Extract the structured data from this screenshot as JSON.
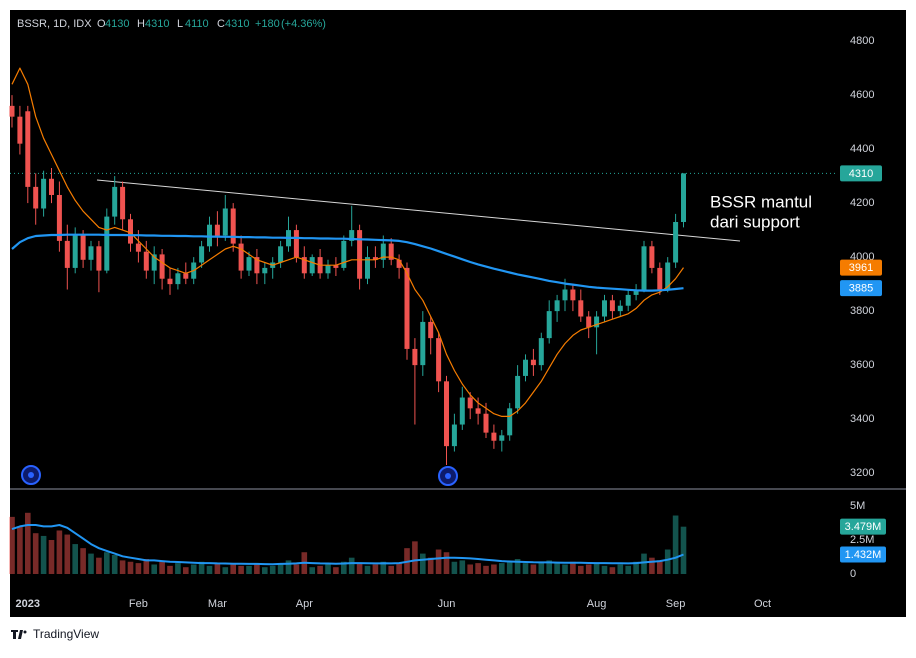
{
  "chart_data": {
    "type": "candlestick",
    "title": "BSSR, 1D, IDX",
    "ohlc_header": [
      {
        "label": "O",
        "value": 4130
      },
      {
        "label": "H",
        "value": 4310
      },
      {
        "label": "L",
        "value": 4110
      },
      {
        "label": "C",
        "value": 4310
      }
    ],
    "change": {
      "value": 180,
      "label": "+180"
    },
    "change_pct": {
      "value": 4.36,
      "label": "(+4.36%)"
    },
    "categories": [
      null,
      null,
      "2023",
      null,
      null,
      null,
      null,
      null,
      null,
      null,
      null,
      null,
      null,
      null,
      null,
      null,
      "Feb",
      null,
      null,
      null,
      null,
      null,
      null,
      null,
      null,
      null,
      "Mar",
      null,
      null,
      null,
      null,
      null,
      null,
      null,
      null,
      null,
      null,
      "Apr",
      null,
      null,
      null,
      null,
      null,
      null,
      null,
      null,
      null,
      null,
      null,
      null,
      null,
      null,
      null,
      null,
      null,
      "Jun",
      null,
      null,
      null,
      null,
      null,
      null,
      null,
      null,
      null,
      null,
      null,
      null,
      null,
      null,
      null,
      null,
      null,
      null,
      "Aug",
      null,
      null,
      null,
      null,
      null,
      null,
      null,
      null,
      null,
      "Sep",
      null,
      null,
      null,
      null,
      null,
      null,
      null,
      null,
      null,
      null,
      "Oct",
      null,
      null,
      null,
      null,
      null,
      null,
      null,
      null,
      null
    ],
    "candles": [
      [
        4560,
        4600,
        4480,
        4520
      ],
      [
        4520,
        4560,
        4380,
        4420
      ],
      [
        4540,
        4560,
        4200,
        4260
      ],
      [
        4260,
        4310,
        4120,
        4180
      ],
      [
        4180,
        4320,
        4150,
        4290
      ],
      [
        4290,
        4330,
        4200,
        4230
      ],
      [
        4230,
        4280,
        4020,
        4060
      ],
      [
        4060,
        4120,
        3880,
        3960
      ],
      [
        3960,
        4110,
        3940,
        4080
      ],
      [
        4080,
        4100,
        3960,
        3990
      ],
      [
        3990,
        4060,
        3950,
        4040
      ],
      [
        4040,
        4060,
        3870,
        3950
      ],
      [
        3950,
        4180,
        3940,
        4150
      ],
      [
        4150,
        4300,
        4120,
        4260
      ],
      [
        4260,
        4280,
        4100,
        4140
      ],
      [
        4140,
        4160,
        4020,
        4050
      ],
      [
        4050,
        4100,
        3980,
        4020
      ],
      [
        4020,
        4060,
        3920,
        3950
      ],
      [
        3950,
        4040,
        3900,
        4010
      ],
      [
        4010,
        4030,
        3880,
        3920
      ],
      [
        3920,
        3960,
        3860,
        3900
      ],
      [
        3900,
        3960,
        3880,
        3940
      ],
      [
        3940,
        3980,
        3900,
        3920
      ],
      [
        3920,
        4000,
        3900,
        3980
      ],
      [
        3980,
        4060,
        3960,
        4040
      ],
      [
        4040,
        4150,
        4020,
        4120
      ],
      [
        4120,
        4170,
        4040,
        4080
      ],
      [
        4080,
        4230,
        4060,
        4180
      ],
      [
        4180,
        4200,
        4020,
        4050
      ],
      [
        4050,
        4080,
        3920,
        3950
      ],
      [
        3950,
        4020,
        3930,
        4000
      ],
      [
        4000,
        4030,
        3900,
        3940
      ],
      [
        3940,
        3980,
        3900,
        3960
      ],
      [
        3960,
        4000,
        3920,
        3980
      ],
      [
        3980,
        4060,
        3960,
        4040
      ],
      [
        4040,
        4150,
        4020,
        4100
      ],
      [
        4100,
        4120,
        3980,
        4000
      ],
      [
        4000,
        4040,
        3920,
        3940
      ],
      [
        3940,
        4010,
        3930,
        4000
      ],
      [
        4000,
        4030,
        3920,
        3940
      ],
      [
        3940,
        3990,
        3920,
        3970
      ],
      [
        3970,
        4000,
        3930,
        3960
      ],
      [
        3960,
        4080,
        3950,
        4060
      ],
      [
        4060,
        4190,
        4040,
        4100
      ],
      [
        4100,
        4120,
        3880,
        3920
      ],
      [
        3920,
        4040,
        3900,
        4000
      ],
      [
        4000,
        4040,
        3960,
        3990
      ],
      [
        3990,
        4080,
        3960,
        4050
      ],
      [
        4050,
        4070,
        3970,
        3990
      ],
      [
        3990,
        4010,
        3920,
        3960
      ],
      [
        3960,
        3980,
        3620,
        3660
      ],
      [
        3660,
        3700,
        3380,
        3600
      ],
      [
        3600,
        3800,
        3560,
        3760
      ],
      [
        3760,
        3780,
        3640,
        3700
      ],
      [
        3700,
        3720,
        3500,
        3540
      ],
      [
        3540,
        3560,
        3230,
        3300
      ],
      [
        3300,
        3420,
        3280,
        3380
      ],
      [
        3380,
        3520,
        3360,
        3480
      ],
      [
        3480,
        3500,
        3400,
        3440
      ],
      [
        3440,
        3480,
        3380,
        3420
      ],
      [
        3420,
        3460,
        3330,
        3350
      ],
      [
        3350,
        3380,
        3290,
        3320
      ],
      [
        3320,
        3360,
        3280,
        3340
      ],
      [
        3340,
        3460,
        3320,
        3440
      ],
      [
        3440,
        3600,
        3420,
        3560
      ],
      [
        3560,
        3640,
        3540,
        3620
      ],
      [
        3620,
        3660,
        3560,
        3600
      ],
      [
        3600,
        3720,
        3580,
        3700
      ],
      [
        3700,
        3840,
        3680,
        3800
      ],
      [
        3800,
        3860,
        3760,
        3840
      ],
      [
        3840,
        3920,
        3800,
        3880
      ],
      [
        3880,
        3900,
        3800,
        3840
      ],
      [
        3840,
        3880,
        3760,
        3780
      ],
      [
        3780,
        3800,
        3700,
        3740
      ],
      [
        3740,
        3800,
        3640,
        3780
      ],
      [
        3780,
        3860,
        3760,
        3840
      ],
      [
        3840,
        3860,
        3770,
        3800
      ],
      [
        3800,
        3840,
        3780,
        3820
      ],
      [
        3820,
        3880,
        3800,
        3860
      ],
      [
        3860,
        3900,
        3840,
        3880
      ],
      [
        3880,
        4060,
        3870,
        4040
      ],
      [
        4040,
        4060,
        3940,
        3960
      ],
      [
        3960,
        3980,
        3860,
        3880
      ],
      [
        3880,
        4000,
        3870,
        3980
      ],
      [
        3980,
        4160,
        3960,
        4130
      ],
      [
        4130,
        4310,
        4110,
        4310
      ],
      null,
      null,
      null,
      null,
      null,
      null,
      null,
      null,
      null,
      null,
      null,
      null,
      null,
      null,
      null,
      null,
      null,
      null,
      null
    ],
    "up_color": "#26a69a",
    "down_color": "#ef5350",
    "ylim": [
      3145,
      4915
    ],
    "yticks": [
      3200,
      3400,
      3600,
      3800,
      4000,
      4200,
      4400,
      4600,
      4800
    ],
    "grid": false,
    "moving_averages": [
      {
        "color": "#f57c00",
        "values": [
          4640,
          4700,
          4640,
          4520,
          4440,
          4380,
          4320,
          4260,
          4210,
          4170,
          4140,
          4110,
          4100,
          4110,
          4100,
          4090,
          4060,
          4030,
          4000,
          3980,
          3960,
          3950,
          3940,
          3950,
          3970,
          3990,
          4010,
          4030,
          4040,
          4030,
          4010,
          3990,
          3980,
          3970,
          3980,
          3990,
          4000,
          3990,
          3980,
          3970,
          3970,
          3970,
          3980,
          3990,
          3990,
          3990,
          3990,
          4000,
          4000,
          3990,
          3940,
          3880,
          3840,
          3780,
          3720,
          3640,
          3580,
          3530,
          3490,
          3460,
          3440,
          3420,
          3410,
          3410,
          3430,
          3460,
          3500,
          3540,
          3590,
          3640,
          3680,
          3710,
          3730,
          3740,
          3750,
          3760,
          3770,
          3780,
          3790,
          3810,
          3840,
          3860,
          3870,
          3890,
          3920,
          3961,
          null,
          null,
          null,
          null,
          null,
          null,
          null,
          null,
          null,
          null,
          null,
          null,
          null,
          null,
          null,
          null,
          null,
          null,
          null
        ]
      },
      {
        "color": "#2196f3",
        "values": [
          4030,
          4055,
          4070,
          4078,
          4080,
          4082,
          4082,
          4083,
          4083,
          4083,
          4083,
          4083,
          4082,
          4082,
          4082,
          4081,
          4081,
          4080,
          4080,
          4079,
          4079,
          4078,
          4078,
          4077,
          4077,
          4076,
          4076,
          4075,
          4075,
          4074,
          4074,
          4073,
          4073,
          4072,
          4072,
          4071,
          4071,
          4070,
          4070,
          4069,
          4069,
          4068,
          4068,
          4067,
          4066,
          4065,
          4064,
          4063,
          4062,
          4060,
          4055,
          4048,
          4040,
          4032,
          4022,
          4012,
          4002,
          3992,
          3982,
          3973,
          3965,
          3957,
          3950,
          3943,
          3936,
          3930,
          3924,
          3918,
          3912,
          3907,
          3902,
          3898,
          3894,
          3890,
          3887,
          3885,
          3883,
          3881,
          3879,
          3877,
          3876,
          3876,
          3877,
          3879,
          3882,
          3885,
          null,
          null,
          null,
          null,
          null,
          null,
          null,
          null,
          null,
          null,
          null,
          null,
          null,
          null,
          null,
          null,
          null,
          null,
          null
        ]
      }
    ],
    "volume": {
      "values": [
        4.2,
        3.5,
        4.5,
        3.0,
        2.8,
        2.5,
        3.2,
        2.9,
        2.2,
        1.9,
        1.5,
        1.2,
        1.6,
        1.4,
        1.0,
        0.9,
        0.8,
        1.1,
        0.7,
        0.9,
        0.6,
        0.8,
        0.5,
        0.7,
        0.9,
        0.6,
        0.8,
        0.5,
        0.7,
        0.6,
        0.6,
        0.7,
        0.5,
        0.6,
        0.8,
        1.0,
        0.7,
        1.6,
        0.5,
        0.6,
        0.7,
        0.5,
        0.9,
        1.2,
        0.8,
        0.6,
        0.7,
        0.9,
        0.6,
        0.8,
        1.9,
        2.4,
        1.5,
        1.2,
        1.8,
        1.6,
        0.9,
        1.0,
        0.7,
        0.8,
        0.6,
        0.7,
        0.8,
        0.9,
        1.1,
        0.8,
        0.7,
        0.9,
        1.0,
        0.8,
        0.7,
        0.9,
        0.6,
        0.7,
        0.8,
        0.6,
        0.5,
        0.7,
        0.6,
        0.9,
        1.5,
        1.2,
        1.0,
        1.8,
        4.3,
        3.479,
        null,
        null,
        null,
        null,
        null,
        null,
        null,
        null,
        null,
        null,
        null,
        null,
        null,
        null,
        null,
        null,
        null,
        null,
        null
      ],
      "ylim": [
        0,
        6.25
      ],
      "yticks": [
        0,
        {
          "value": 2.5,
          "label": "2.5M"
        },
        {
          "value": 5,
          "label": "5M"
        }
      ],
      "average": {
        "color": "#2196f3",
        "values": [
          3.3,
          3.5,
          3.6,
          3.6,
          3.5,
          3.5,
          3.6,
          3.4,
          3.0,
          2.6,
          2.2,
          1.9,
          1.7,
          1.5,
          1.3,
          1.2,
          1.1,
          1.0,
          1.0,
          0.95,
          0.9,
          0.88,
          0.85,
          0.82,
          0.8,
          0.8,
          0.78,
          0.77,
          0.76,
          0.75,
          0.74,
          0.74,
          0.73,
          0.72,
          0.74,
          0.76,
          0.78,
          0.82,
          0.8,
          0.78,
          0.77,
          0.76,
          0.77,
          0.8,
          0.8,
          0.79,
          0.78,
          0.79,
          0.78,
          0.8,
          0.9,
          1.0,
          1.05,
          1.1,
          1.15,
          1.2,
          1.2,
          1.18,
          1.15,
          1.1,
          1.05,
          1.0,
          0.95,
          0.92,
          0.9,
          0.88,
          0.86,
          0.85,
          0.85,
          0.84,
          0.83,
          0.82,
          0.82,
          0.81,
          0.8,
          0.8,
          0.79,
          0.79,
          0.78,
          0.8,
          0.85,
          0.9,
          0.95,
          1.05,
          1.2,
          1.432,
          null,
          null,
          null,
          null,
          null,
          null,
          null,
          null,
          null,
          null,
          null,
          null,
          null,
          null,
          null,
          null,
          null,
          null,
          null
        ]
      },
      "badges": [
        {
          "value": 3.479,
          "label": "3.479M",
          "color": "#26a69a"
        },
        {
          "value": 1.432,
          "label": "1.432M",
          "color": "#2196f3"
        }
      ]
    },
    "annotation": [
      "BSSR mantul",
      "dari support"
    ]
  },
  "footer": "TradingView"
}
